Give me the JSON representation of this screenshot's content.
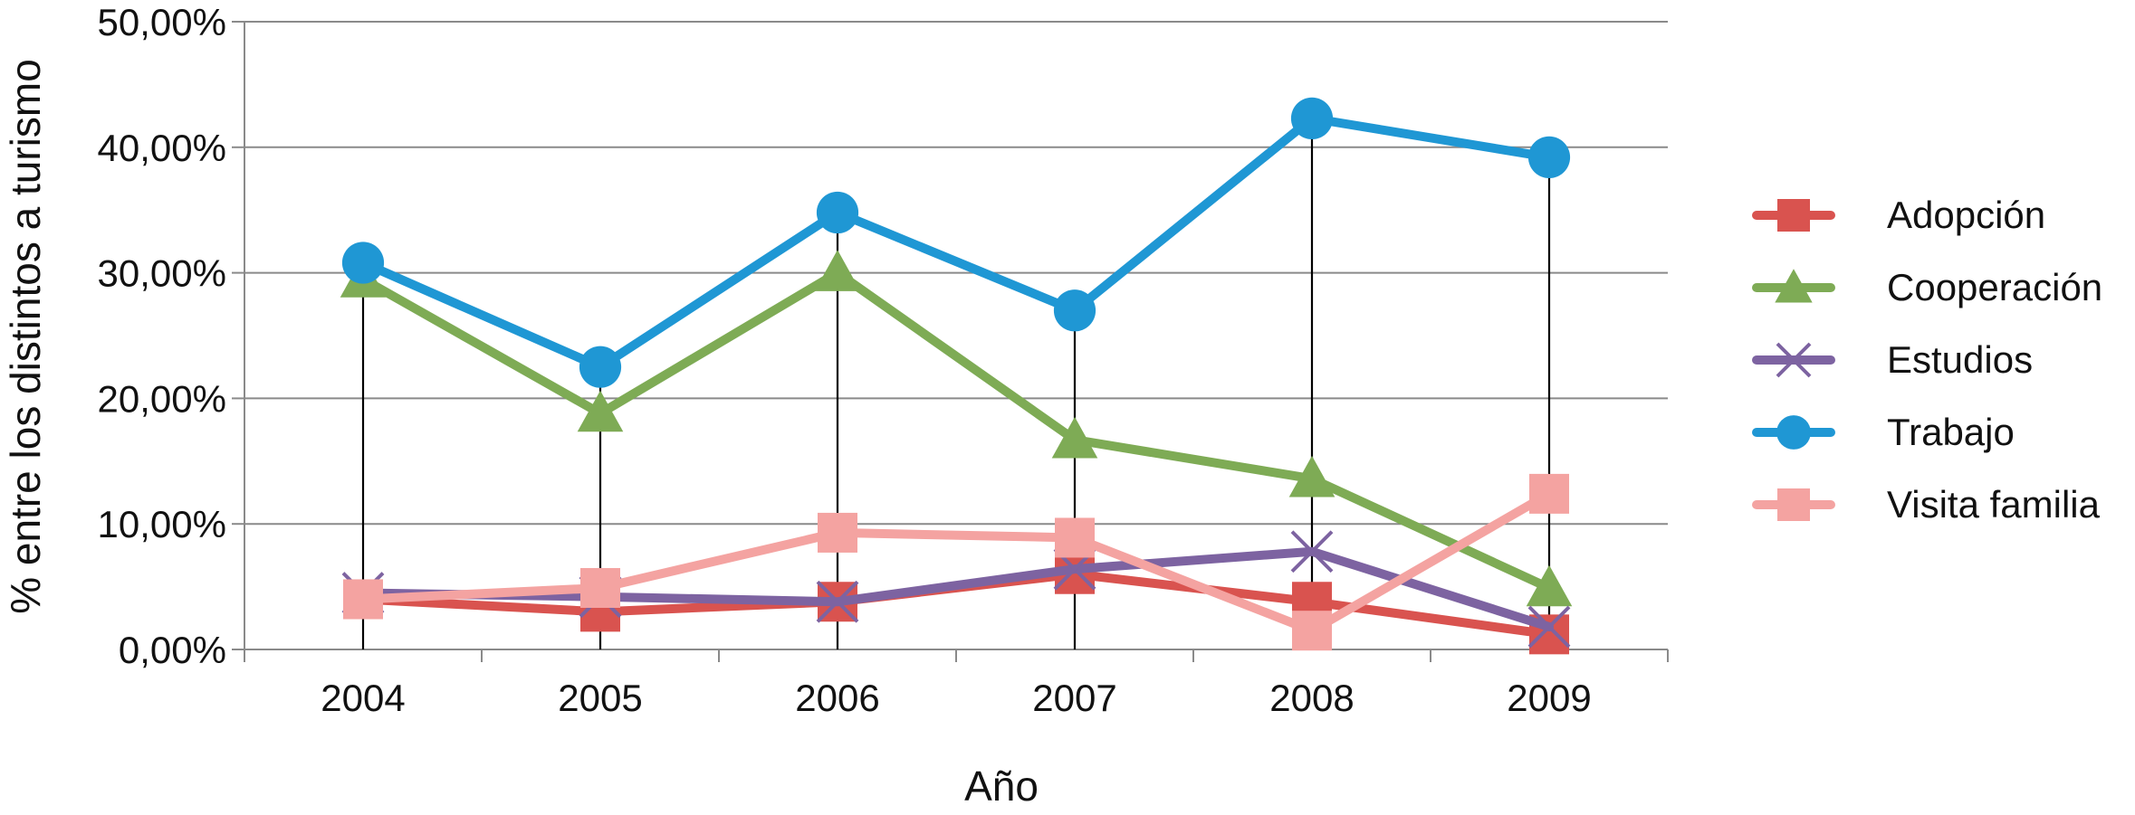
{
  "chart_data": {
    "type": "line",
    "xlabel": "Año",
    "ylabel": "% entre los distintos a turismo",
    "categories": [
      "2004",
      "2005",
      "2006",
      "2007",
      "2008",
      "2009"
    ],
    "ylim": [
      0,
      50
    ],
    "yticks": [
      {
        "value": 0,
        "label": "0,00%"
      },
      {
        "value": 10,
        "label": "10,00%"
      },
      {
        "value": 20,
        "label": "20,00%"
      },
      {
        "value": 30,
        "label": "30,00%"
      },
      {
        "value": 40,
        "label": "40,00%"
      },
      {
        "value": 50,
        "label": "50,00%"
      }
    ],
    "grid": true,
    "drop_lines": true,
    "legend_position": "right",
    "series": [
      {
        "name": "Adopción",
        "color": "#d9534f",
        "marker": "square",
        "values": [
          4.0,
          3.0,
          3.8,
          6.0,
          3.8,
          1.2
        ]
      },
      {
        "name": "Cooperación",
        "color": "#7eab55",
        "marker": "triangle",
        "values": [
          29.5,
          18.8,
          30.0,
          16.7,
          13.6,
          4.9
        ]
      },
      {
        "name": "Estudios",
        "color": "#7d63a1",
        "marker": "x",
        "values": [
          4.5,
          4.2,
          3.8,
          6.4,
          7.8,
          1.8
        ]
      },
      {
        "name": "Trabajo",
        "color": "#1f97d4",
        "marker": "circle",
        "values": [
          30.8,
          22.5,
          34.8,
          27.0,
          42.3,
          39.2
        ]
      },
      {
        "name": "Visita familia",
        "color": "#f4a3a1",
        "marker": "square",
        "values": [
          4.0,
          4.9,
          9.3,
          8.9,
          1.5,
          12.4
        ]
      }
    ]
  }
}
